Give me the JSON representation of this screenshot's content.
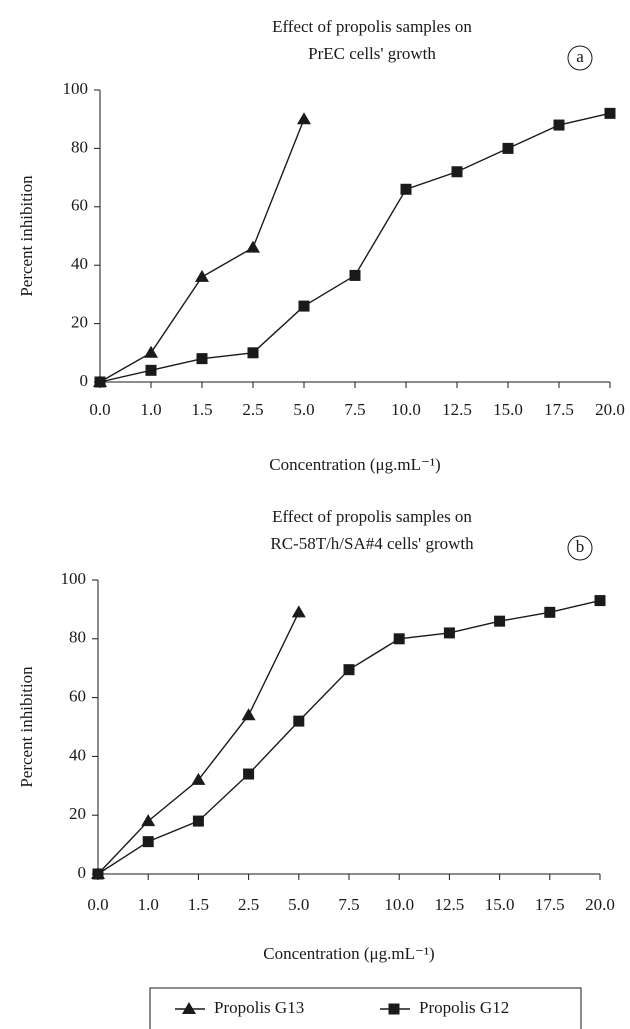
{
  "chart_data": [
    {
      "type": "line",
      "title": [
        "Effect of propolis samples on",
        "PrEC cells' growth"
      ],
      "panel_label": "a",
      "x_label": "Concentration (μg.mL⁻¹)",
      "y_label": "Percent inhibition",
      "categories": [
        "0.0",
        "1.0",
        "1.5",
        "2.5",
        "5.0",
        "7.5",
        "10.0",
        "12.5",
        "15.0",
        "17.5",
        "20.0"
      ],
      "series": [
        {
          "marker": "triangle",
          "color": "#1a1a1a",
          "values": [
            0,
            10,
            36,
            46,
            90,
            null,
            null,
            null,
            null,
            null,
            null
          ]
        },
        {
          "marker": "square",
          "color": "#1a1a1a",
          "values": [
            0,
            4,
            8,
            10,
            26,
            36.5,
            66,
            72,
            80,
            88,
            92
          ]
        }
      ],
      "ylim": [
        0,
        100
      ],
      "yticks": [
        0,
        20,
        40,
        60,
        80,
        100
      ]
    },
    {
      "type": "line",
      "title": [
        "Effect of propolis samples on",
        "RC-58T/h/SA#4 cells' growth"
      ],
      "panel_label": "b",
      "x_label": "Concentration (μg.mL⁻¹)",
      "y_label": "Percent inhibition",
      "categories": [
        "0.0",
        "1.0",
        "1.5",
        "2.5",
        "5.0",
        "7.5",
        "10.0",
        "12.5",
        "15.0",
        "17.5",
        "20.0"
      ],
      "series": [
        {
          "name": "Propolis G13",
          "marker": "triangle",
          "color": "#1a1a1a",
          "values": [
            0,
            18,
            32,
            54,
            89,
            null,
            null,
            null,
            null,
            null,
            null
          ]
        },
        {
          "name": "Propolis G12",
          "marker": "square",
          "color": "#1a1a1a",
          "values": [
            0,
            11,
            18,
            34,
            52,
            69.5,
            80,
            82,
            86,
            89,
            93
          ]
        }
      ],
      "ylim": [
        0,
        100
      ],
      "yticks": [
        0,
        20,
        40,
        60,
        80,
        100
      ]
    }
  ]
}
